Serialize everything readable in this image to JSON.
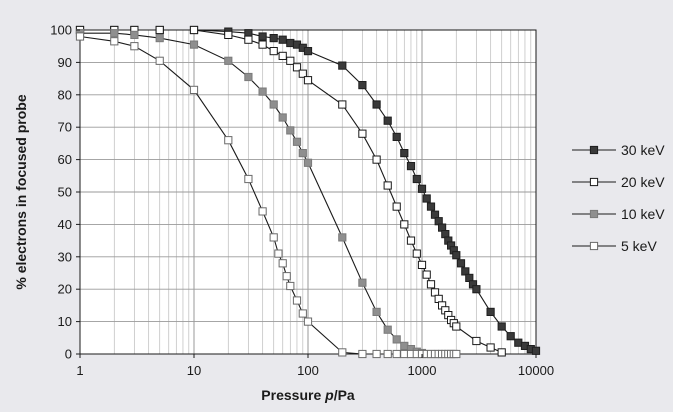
{
  "chart_data": {
    "type": "line",
    "title": "",
    "xlabel": "Pressure p/Pa",
    "xlabel_parts": [
      "Pressure ",
      "p",
      "/Pa"
    ],
    "ylabel": "% electrons in focused probe",
    "xscale": "log",
    "xlim": [
      1,
      10000
    ],
    "ylim": [
      0,
      100
    ],
    "x_ticks": [
      1,
      10,
      100,
      1000,
      10000
    ],
    "x_tick_labels": [
      "1",
      "10",
      "100",
      "1000",
      "10000"
    ],
    "y_ticks": [
      0,
      10,
      20,
      30,
      40,
      50,
      60,
      70,
      80,
      90,
      100
    ],
    "y_tick_labels": [
      "0",
      "10",
      "20",
      "30",
      "40",
      "50",
      "60",
      "70",
      "80",
      "90",
      "100"
    ],
    "grid": true,
    "legend_position": "right",
    "series": [
      {
        "name": "30 keV",
        "marker": "filled-square",
        "color": "#3a3a3a",
        "x": [
          1,
          2,
          3,
          5,
          10,
          20,
          30,
          40,
          50,
          60,
          70,
          80,
          90,
          100,
          200,
          300,
          400,
          500,
          600,
          700,
          800,
          900,
          1000,
          1100,
          1200,
          1300,
          1400,
          1500,
          1600,
          1700,
          1800,
          1900,
          2000,
          2200,
          2400,
          2600,
          2800,
          3000,
          4000,
          5000,
          6000,
          7000,
          8000,
          9000,
          10000
        ],
        "y": [
          100,
          100,
          100,
          100,
          100,
          99.5,
          99,
          98,
          97.5,
          97,
          96,
          95.5,
          94.5,
          93.5,
          89,
          83,
          77,
          72,
          67,
          62,
          58,
          54,
          51,
          48,
          45.5,
          43,
          41,
          39,
          37,
          35,
          33.5,
          32,
          30.5,
          28,
          25.5,
          23.5,
          21.5,
          20,
          13,
          8.5,
          5.5,
          3.5,
          2.5,
          1.5,
          1
        ]
      },
      {
        "name": "20 keV",
        "marker": "open-square",
        "color": "#1a1a1a",
        "x": [
          1,
          2,
          3,
          5,
          10,
          20,
          30,
          40,
          50,
          60,
          70,
          80,
          90,
          100,
          200,
          300,
          400,
          500,
          600,
          700,
          800,
          900,
          1000,
          1100,
          1200,
          1300,
          1400,
          1500,
          1600,
          1700,
          1800,
          1900,
          2000,
          3000,
          4000,
          5000
        ],
        "y": [
          100,
          100,
          100,
          100,
          100,
          98.5,
          97,
          95.5,
          93.5,
          92,
          90.5,
          88.5,
          86.5,
          84.5,
          77,
          68,
          60,
          52,
          45.5,
          40,
          35,
          31,
          27.5,
          24.5,
          21.5,
          19,
          17,
          15,
          13.5,
          12,
          10.5,
          9.5,
          8.5,
          4,
          2,
          0.5
        ]
      },
      {
        "name": "10 keV",
        "marker": "gray-square",
        "color": "#8a8a8a",
        "x": [
          1,
          2,
          3,
          5,
          10,
          20,
          30,
          40,
          50,
          60,
          70,
          80,
          90,
          100,
          200,
          300,
          400,
          500,
          600,
          700,
          800,
          900,
          1000
        ],
        "y": [
          99,
          99,
          98.5,
          97.5,
          95.5,
          90.5,
          85.5,
          81,
          77,
          73,
          69,
          65.5,
          62,
          59,
          36,
          22,
          13,
          7.5,
          4.5,
          2.5,
          1.5,
          0.7,
          0.3
        ]
      },
      {
        "name": "5 keV",
        "marker": "gray-open-square",
        "color": "#5e5e5e",
        "x": [
          1,
          2,
          3,
          5,
          10,
          20,
          30,
          40,
          50,
          55,
          60,
          65,
          70,
          80,
          90,
          100,
          200,
          300,
          400,
          500,
          600,
          700,
          800,
          900,
          1000,
          1100,
          1200,
          1300,
          1400,
          1500,
          1600,
          1700,
          1800,
          1900,
          2000
        ],
        "y": [
          98,
          96.5,
          95,
          90.5,
          81.5,
          66,
          54,
          44,
          36,
          31,
          28,
          24,
          21,
          16.5,
          12.5,
          10,
          0.5,
          0,
          0,
          0,
          0,
          0,
          0,
          0,
          0,
          0,
          0,
          0,
          0,
          0,
          0,
          0,
          0,
          0,
          0
        ]
      }
    ]
  }
}
